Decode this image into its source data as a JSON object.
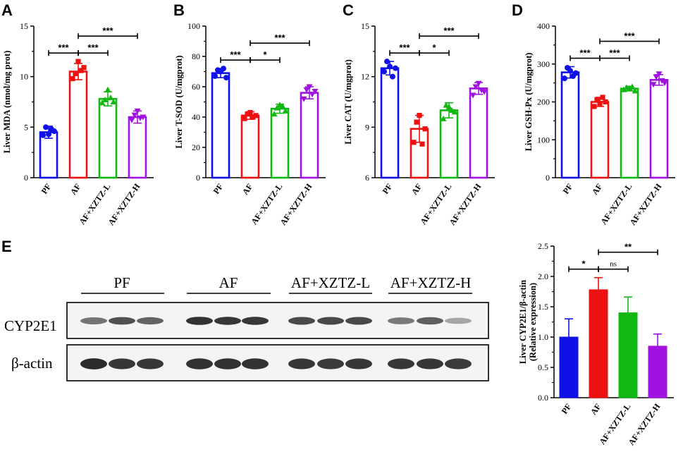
{
  "colors": {
    "PF": "#1010e8",
    "AF": "#ee1111",
    "AF+XZTZ-L": "#12b812",
    "AF+XZTZ-H": "#a012e0"
  },
  "chart_data": [
    {
      "panel": "A",
      "type": "bar",
      "categories": [
        "PF",
        "AF",
        "AF+XZTZ-L",
        "AF+XZTZ-H"
      ],
      "values": [
        4.5,
        10.5,
        7.8,
        6.0
      ],
      "errors": [
        0.6,
        0.8,
        0.7,
        0.6
      ],
      "points": [
        [
          4.2,
          5.0,
          4.3,
          4.8,
          4.6
        ],
        [
          9.8,
          10.3,
          11.5,
          10.6,
          10.9
        ],
        [
          7.4,
          7.7,
          8.7,
          7.9,
          7.5
        ],
        [
          5.7,
          6.2,
          6.6,
          5.9,
          6.0
        ]
      ],
      "markers": [
        "circle",
        "square",
        "triangle",
        "triangle-down"
      ],
      "ylabel": "Liver MDA (nmol/mg prot)",
      "ylim": [
        0,
        15
      ],
      "yticks": [
        "0",
        "5",
        "10",
        "15"
      ],
      "sig": [
        {
          "from": 0,
          "to": 1,
          "label": "***",
          "level": 0
        },
        {
          "from": 1,
          "to": 2,
          "label": "***",
          "level": 0
        },
        {
          "from": 1,
          "to": 3,
          "label": "***",
          "level": 1
        }
      ]
    },
    {
      "panel": "B",
      "type": "bar",
      "categories": [
        "PF",
        "AF",
        "AF+XZTZ-L",
        "AF+XZTZ-H"
      ],
      "values": [
        69,
        41,
        45.5,
        56
      ],
      "errors": [
        3,
        2.5,
        3,
        4
      ],
      "points": [
        [
          67,
          71,
          70,
          72,
          66
        ],
        [
          39,
          42,
          43,
          40,
          41
        ],
        [
          42,
          46,
          48,
          47,
          44
        ],
        [
          52,
          58,
          60,
          55,
          57
        ]
      ],
      "markers": [
        "circle",
        "square",
        "triangle",
        "triangle-down"
      ],
      "ylabel": "Liver T-SOD (U/mgprot)",
      "ylim": [
        0,
        100
      ],
      "yticks": [
        "0",
        "20",
        "40",
        "60",
        "80",
        "100"
      ],
      "sig": [
        {
          "from": 0,
          "to": 1,
          "label": "***",
          "level": 0
        },
        {
          "from": 1,
          "to": 2,
          "label": "*",
          "level": 0
        },
        {
          "from": 1,
          "to": 3,
          "label": "***",
          "level": 1
        }
      ]
    },
    {
      "panel": "C",
      "type": "bar",
      "categories": [
        "PF",
        "AF",
        "AF+XZTZ-L",
        "AF+XZTZ-H"
      ],
      "values": [
        12.5,
        8.9,
        10.0,
        11.3
      ],
      "errors": [
        0.4,
        0.8,
        0.45,
        0.35
      ],
      "points": [
        [
          12.3,
          12.9,
          12.6,
          12.0,
          12.5
        ],
        [
          8.1,
          9.3,
          9.7,
          8.0,
          8.9
        ],
        [
          9.5,
          10.3,
          10.2,
          10.0,
          9.9
        ],
        [
          10.9,
          11.4,
          11.6,
          11.2,
          11.1
        ]
      ],
      "markers": [
        "circle",
        "square",
        "triangle",
        "triangle-down"
      ],
      "ylabel": "Liver CAT (U/mgprot)",
      "ylim": [
        6,
        15
      ],
      "yticks": [
        "6",
        "9",
        "12",
        "15"
      ],
      "sig": [
        {
          "from": 0,
          "to": 1,
          "label": "***",
          "level": 0
        },
        {
          "from": 1,
          "to": 2,
          "label": "*",
          "level": 0
        },
        {
          "from": 1,
          "to": 3,
          "label": "***",
          "level": 1
        }
      ]
    },
    {
      "panel": "D",
      "type": "bar",
      "categories": [
        "PF",
        "AF",
        "AF+XZTZ-L",
        "AF+XZTZ-H"
      ],
      "values": [
        278,
        200,
        235,
        258
      ],
      "errors": [
        15,
        12,
        6,
        14
      ],
      "points": [
        [
          262,
          290,
          282,
          268,
          276
        ],
        [
          188,
          206,
          196,
          212,
          200
        ],
        [
          232,
          238,
          236,
          240,
          229
        ],
        [
          246,
          266,
          274,
          256,
          250
        ]
      ],
      "markers": [
        "circle",
        "square",
        "triangle",
        "triangle-down"
      ],
      "ylabel": "Liver GSH-Px (U/mgprot)",
      "ylim": [
        0,
        400
      ],
      "yticks": [
        "0",
        "100",
        "200",
        "300",
        "400"
      ],
      "sig": [
        {
          "from": 0,
          "to": 1,
          "label": "***",
          "level": 0
        },
        {
          "from": 1,
          "to": 2,
          "label": "***",
          "level": 0
        },
        {
          "from": 1,
          "to": 3,
          "label": "***",
          "level": 1
        }
      ]
    },
    {
      "panel": "E",
      "type": "bar",
      "categories": [
        "PF",
        "AF",
        "AF+XZTZ-L",
        "AF+XZTZ-H"
      ],
      "values": [
        1.0,
        1.78,
        1.4,
        0.85
      ],
      "errors": [
        0.3,
        0.2,
        0.26,
        0.2
      ],
      "ylabel": "Liver CYP2E1/β-actin",
      "ylabel2": "(Relative expression)",
      "ylim": [
        0,
        2.5
      ],
      "yticks": [
        "0.0",
        "0.5",
        "1.0",
        "1.5",
        "2.0",
        "2.5"
      ],
      "sig": [
        {
          "from": 0,
          "to": 1,
          "label": "*",
          "level": 0
        },
        {
          "from": 1,
          "to": 2,
          "label": "ns",
          "level": 0
        },
        {
          "from": 1,
          "to": 3,
          "label": "**",
          "level": 1
        }
      ]
    }
  ],
  "blot": {
    "groups": [
      "PF",
      "AF",
      "AF+XZTZ-L",
      "AF+XZTZ-H"
    ],
    "rows": [
      "CYP2E1",
      "β-actin"
    ],
    "band_intensity": {
      "CYP2E1": [
        0.62,
        0.78,
        0.7,
        0.92,
        0.9,
        0.9,
        0.82,
        0.82,
        0.82,
        0.6,
        0.72,
        0.4
      ],
      "β-actin": [
        0.95,
        0.9,
        0.9,
        0.92,
        0.92,
        0.92,
        0.9,
        0.88,
        0.9,
        0.9,
        0.9,
        0.88
      ]
    }
  }
}
